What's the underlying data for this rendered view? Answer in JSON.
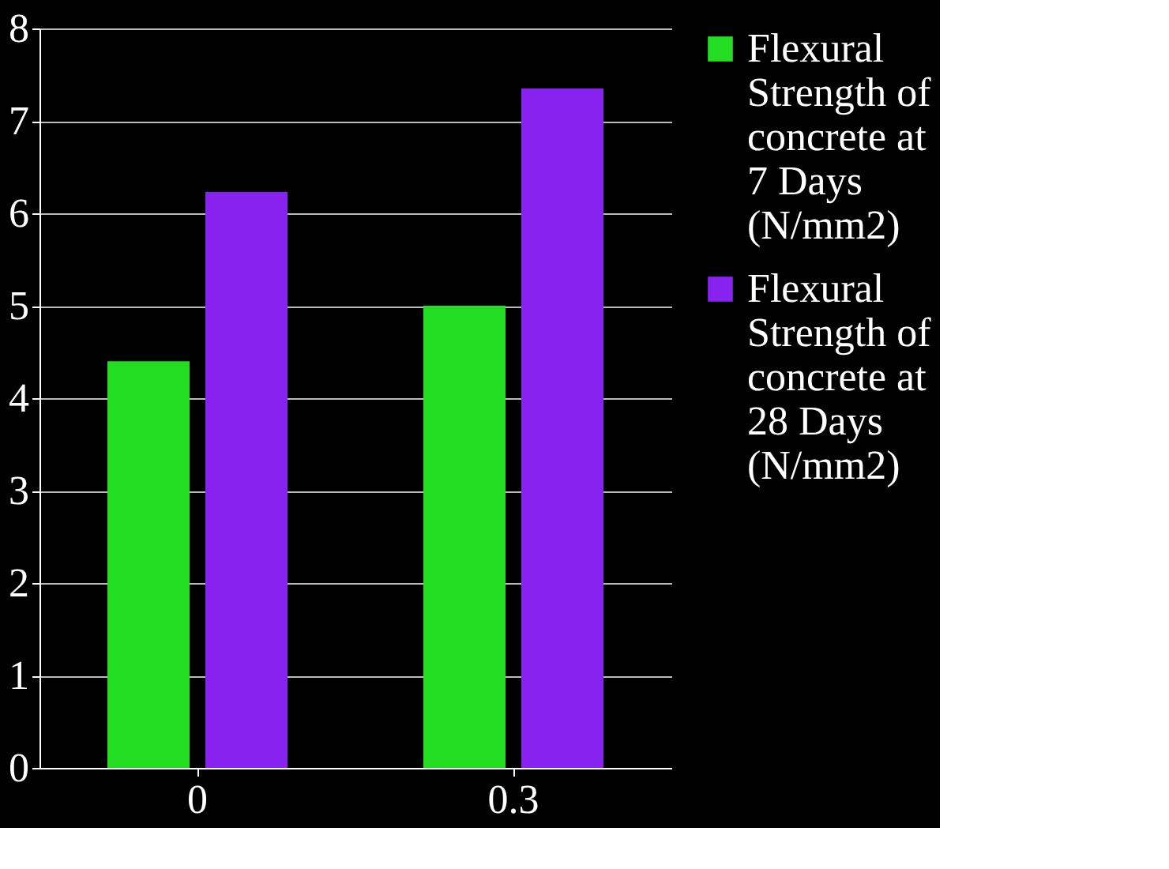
{
  "chart_data": {
    "type": "bar",
    "categories": [
      "0",
      "0.3"
    ],
    "series": [
      {
        "name": "Flexural Strength of concrete at 7 Days (N/mm2)",
        "color": "#22dd22",
        "values": [
          4.4,
          5.0
        ]
      },
      {
        "name": "Flexural Strength of concrete at 28 Days (N/mm2)",
        "color": "#8822ee",
        "values": [
          6.23,
          7.35
        ]
      }
    ],
    "ylim": [
      0,
      8
    ],
    "yticks": [
      0,
      1,
      2,
      3,
      4,
      5,
      6,
      7,
      8
    ],
    "grid": "y",
    "legend": "right"
  }
}
